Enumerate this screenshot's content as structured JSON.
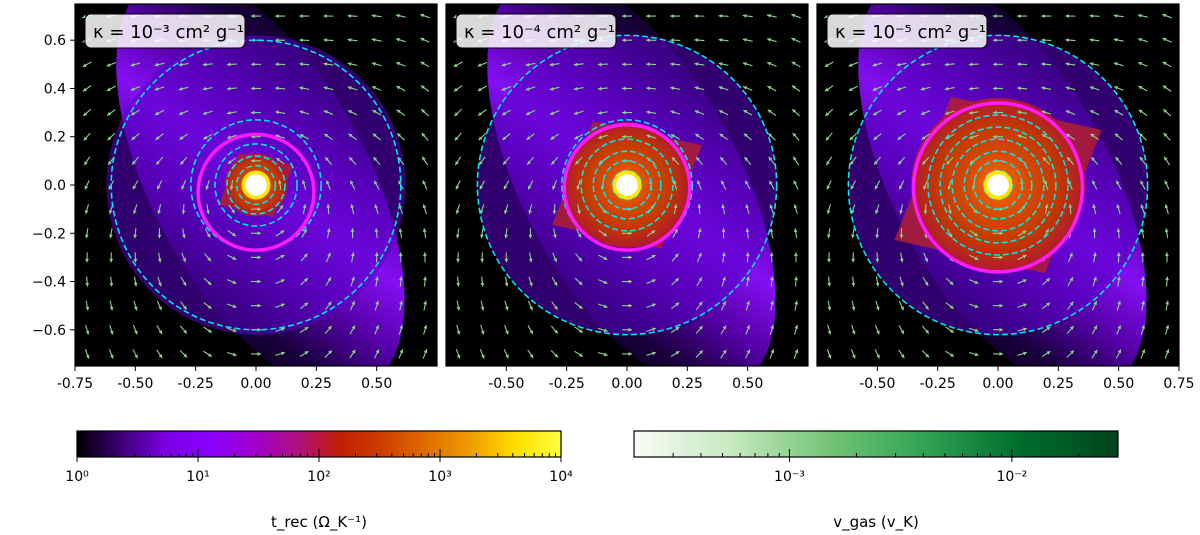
{
  "chart_data": {
    "type": "heatmap",
    "description_units": "positions in units of orbital separation",
    "panels": [
      {
        "label": "κ = 10⁻³ cm² g⁻¹",
        "kappa_exp": -3,
        "rec_radius": 0.13,
        "circle_radius": 0.24,
        "circle_cy": -0.03,
        "contours": [
          0.04,
          0.08,
          0.12,
          0.17,
          0.27,
          0.6
        ]
      },
      {
        "label": "κ = 10⁻⁴ cm² g⁻¹",
        "kappa_exp": -4,
        "rec_radius": 0.26,
        "circle_radius": 0.26,
        "circle_cy": -0.01,
        "contours": [
          0.04,
          0.06,
          0.1,
          0.14,
          0.19,
          0.27,
          0.62
        ]
      },
      {
        "label": "κ = 10⁻⁵ cm² g⁻¹",
        "kappa_exp": -5,
        "rec_radius": 0.36,
        "circle_radius": 0.35,
        "circle_cy": -0.01,
        "contours": [
          0.04,
          0.06,
          0.1,
          0.14,
          0.19,
          0.24,
          0.29,
          0.62
        ]
      }
    ],
    "xlim": [
      -0.75,
      0.75
    ],
    "ylim": [
      -0.75,
      0.75
    ],
    "x_ticks_first": [
      "-0.75",
      "-0.50",
      "-0.25",
      "0.00",
      "0.25",
      "0.50"
    ],
    "x_ticks_middle": [
      "-0.50",
      "-0.25",
      "0.00",
      "0.25",
      "0.50"
    ],
    "x_ticks_last": [
      "-0.50",
      "-0.25",
      "0.00",
      "0.25",
      "0.50",
      "0.75"
    ],
    "x_tick_values_first": [
      -0.75,
      -0.5,
      -0.25,
      0,
      0.25,
      0.5
    ],
    "x_tick_values_middle": [
      -0.5,
      -0.25,
      0,
      0.25,
      0.5
    ],
    "x_tick_values_last": [
      -0.5,
      -0.25,
      0,
      0.25,
      0.5,
      0.75
    ],
    "y_ticks": [
      "0.6",
      "0.4",
      "0.2",
      "0.0",
      "−0.2",
      "−0.4",
      "−0.6"
    ],
    "y_tick_values": [
      0.6,
      0.4,
      0.2,
      0.0,
      -0.2,
      -0.4,
      -0.6
    ],
    "colorbar_trec": {
      "label": "t_rec (Ω_K⁻¹)",
      "range": [
        1,
        10000
      ],
      "tick_labels": [
        "10⁰",
        "10¹",
        "10²",
        "10³",
        "10⁴"
      ],
      "colormap": [
        "#000000",
        "#3d0078",
        "#7a00e0",
        "#8a00ff",
        "#a000d0",
        "#b01080",
        "#c02000",
        "#d04000",
        "#e07000",
        "#f0a000",
        "#ffe000",
        "#ffff40"
      ]
    },
    "colorbar_vgas": {
      "label": "v_gas (v_K)",
      "range": [
        0.0002,
        0.03
      ],
      "tick_labels": [
        "10⁻³",
        "10⁻²"
      ],
      "tick_values": [
        0.001,
        0.01
      ],
      "colormap": [
        "#f7fcf5",
        "#c7e9c0",
        "#74c476",
        "#31a354",
        "#006d2c",
        "#00441b"
      ]
    },
    "colors": {
      "circle": "#ff1aff",
      "contour": "#00e5ee",
      "arrow": "#8fd18f",
      "inner_disk": "#ffffff"
    }
  },
  "labels": {
    "panel1": "κ = 10⁻³ cm² g⁻¹",
    "panel2": "κ = 10⁻⁴ cm² g⁻¹",
    "panel3": "κ = 10⁻⁵ cm² g⁻¹",
    "cb1_label": "t_rec (Ω_K⁻¹)",
    "cb2_label": "v_gas (v_K)"
  }
}
